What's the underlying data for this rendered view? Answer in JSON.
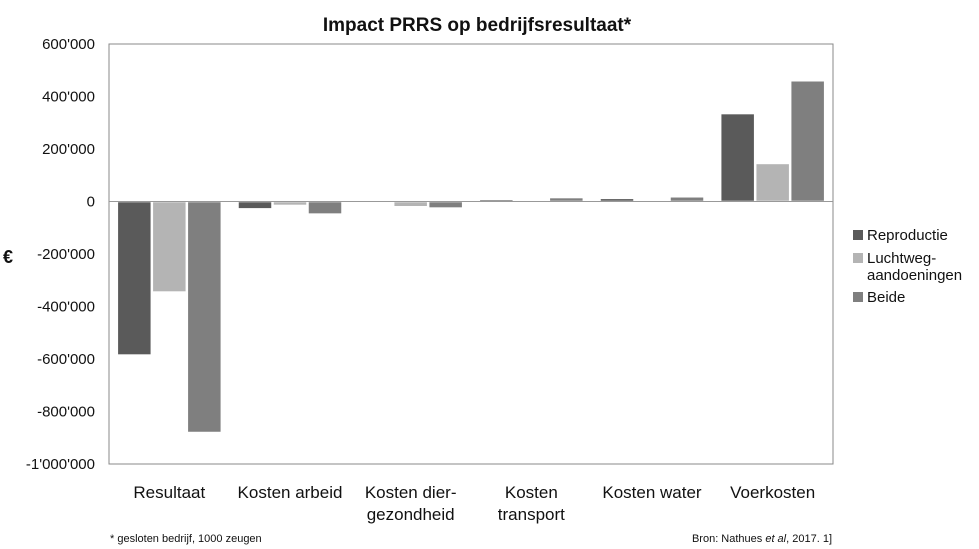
{
  "chart_data": {
    "type": "bar",
    "title": "Impact PRRS op bedrijfsresultaat*",
    "ylabel": "€",
    "xlabel": "",
    "ylim": [
      -1000000,
      600000
    ],
    "yticks": [
      600000,
      400000,
      200000,
      0,
      -200000,
      -400000,
      -600000,
      -800000,
      -1000000
    ],
    "ytick_labels": [
      "600'000",
      "400'000",
      "200'000",
      "0",
      "-200'000",
      "-400'000",
      "-600'000",
      "-800'000",
      "-1'000'000"
    ],
    "categories": [
      [
        "Resultaat"
      ],
      [
        "Kosten arbeid"
      ],
      [
        "Kosten dier-",
        "gezondheid"
      ],
      [
        "Kosten",
        "transport"
      ],
      [
        "Kosten water"
      ],
      [
        "Voerkosten"
      ]
    ],
    "series": [
      {
        "name": "Reproductie",
        "color": "#5a5a5a",
        "values": [
          -585000,
          -28000,
          -5000,
          8000,
          12000,
          335000
        ]
      },
      {
        "name": "Luchtweg-\naandoeningen",
        "color": "#b4b4b4",
        "values": [
          -345000,
          -15000,
          -20000,
          2000,
          3000,
          145000
        ]
      },
      {
        "name": "Beide",
        "color": "#7f7f7f",
        "values": [
          -880000,
          -48000,
          -25000,
          15000,
          18000,
          460000
        ]
      }
    ],
    "grid": false,
    "legend_position": "right"
  },
  "footnote_left": "* gesloten bedrijf, 1000 zeugen",
  "footnote_right": {
    "prefix": "Bron: Nathues ",
    "italic": "et al",
    "suffix": ", 2017. 1]"
  }
}
